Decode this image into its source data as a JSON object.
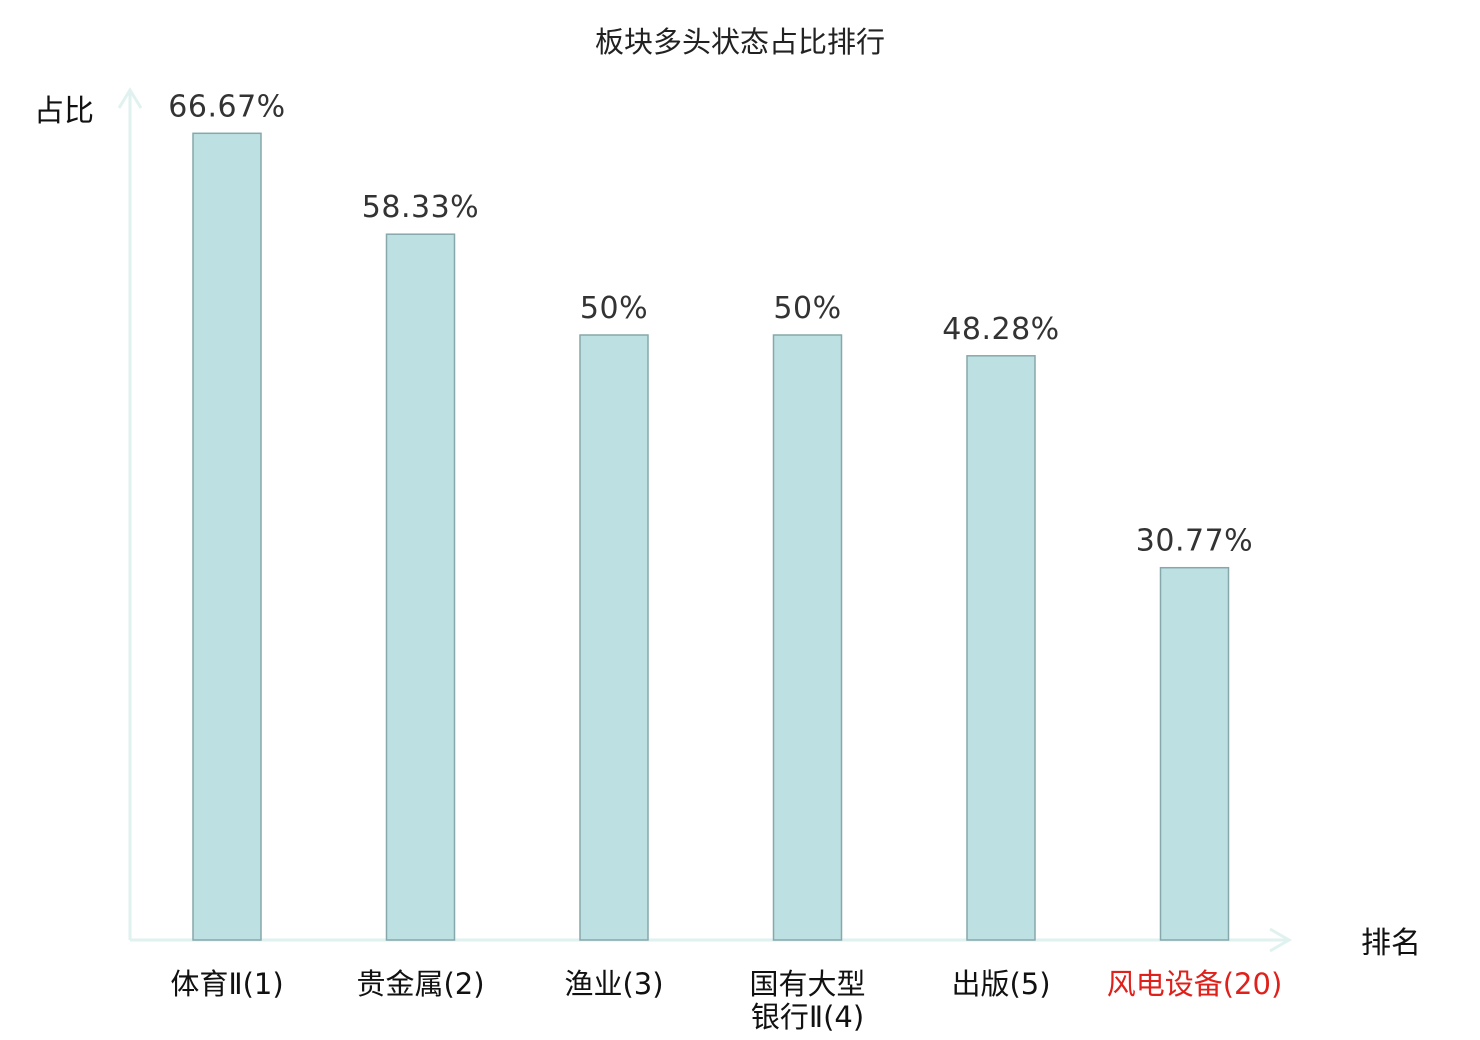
{
  "chart_data": {
    "type": "bar",
    "title": "板块多头状态占比排行",
    "ylabel": "占比",
    "xlabel": "排名",
    "grid": false,
    "legend": "none",
    "ylim": [
      0,
      70
    ],
    "categories": [
      [
        "体育Ⅱ(1)"
      ],
      [
        "贵金属(2)"
      ],
      [
        "渔业(3)"
      ],
      [
        "国有大型",
        "银行Ⅱ(4)"
      ],
      [
        "出版(5)"
      ],
      [
        "风电设备(20)"
      ]
    ],
    "values": [
      66.67,
      58.33,
      50,
      50,
      48.28,
      30.77
    ],
    "value_labels": [
      "66.67%",
      "58.33%",
      "50%",
      "50%",
      "48.28%",
      "30.77%"
    ],
    "highlight_index": 5,
    "colors": {
      "bar_fill": "#bde0e3",
      "bar_stroke": "#86a8ab",
      "axis": "#e0f2ef",
      "category_text": "#111111",
      "highlight_text": "#e0201b"
    }
  }
}
